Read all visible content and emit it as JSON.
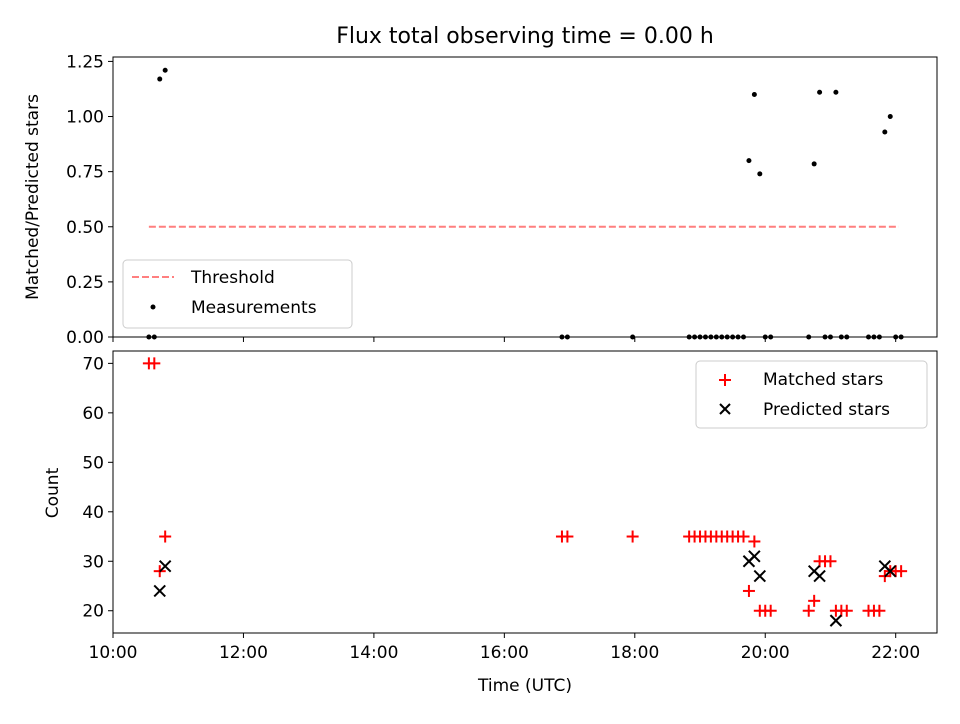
{
  "chart_data": [
    {
      "type": "scatter",
      "title": "Flux total observing time = 0.00 h",
      "xlabel": "",
      "ylabel": "Matched/Predicted stars",
      "ylim": [
        0,
        1.27
      ],
      "xlim": [
        "10:00",
        "22:38"
      ],
      "y_ticks": [
        "0.00",
        "0.25",
        "0.50",
        "0.75",
        "1.00",
        "1.25"
      ],
      "x_tick_labels_shown": false,
      "grid": false,
      "legend": {
        "placement": "lower-left",
        "entries": [
          "Threshold",
          "Measurements"
        ]
      },
      "threshold": {
        "name": "Threshold",
        "value": 0.5,
        "x_start": "10:33",
        "x_end": "22:03",
        "color": "#ff7f7f",
        "style": "dashed"
      },
      "series": [
        {
          "name": "Measurements",
          "marker": "dot",
          "color": "#000000",
          "points": [
            [
              "10:33",
              0.0
            ],
            [
              "10:38",
              0.0
            ],
            [
              "10:43",
              1.17
            ],
            [
              "10:48",
              1.21
            ],
            [
              "16:53",
              0.0
            ],
            [
              "16:58",
              0.0
            ],
            [
              "17:58",
              0.0
            ],
            [
              "18:50",
              0.0
            ],
            [
              "18:55",
              0.0
            ],
            [
              "19:00",
              0.0
            ],
            [
              "19:05",
              0.0
            ],
            [
              "19:10",
              0.0
            ],
            [
              "19:15",
              0.0
            ],
            [
              "19:20",
              0.0
            ],
            [
              "19:25",
              0.0
            ],
            [
              "19:30",
              0.0
            ],
            [
              "19:35",
              0.0
            ],
            [
              "19:40",
              0.0
            ],
            [
              "19:45",
              0.8
            ],
            [
              "19:50",
              1.1
            ],
            [
              "19:55",
              0.74
            ],
            [
              "20:00",
              0.0
            ],
            [
              "20:05",
              0.0
            ],
            [
              "20:40",
              0.0
            ],
            [
              "20:45",
              0.785
            ],
            [
              "20:50",
              1.11
            ],
            [
              "20:55",
              0.0
            ],
            [
              "21:00",
              0.0
            ],
            [
              "21:05",
              1.11
            ],
            [
              "21:10",
              0.0
            ],
            [
              "21:15",
              0.0
            ],
            [
              "21:35",
              0.0
            ],
            [
              "21:40",
              0.0
            ],
            [
              "21:45",
              0.0
            ],
            [
              "21:50",
              0.93
            ],
            [
              "21:55",
              1.0
            ],
            [
              "22:00",
              0.0
            ],
            [
              "22:05",
              0.0
            ]
          ]
        }
      ]
    },
    {
      "type": "scatter",
      "title": "",
      "xlabel": "Time (UTC)",
      "ylabel": "Count",
      "ylim": [
        15.5,
        72.5
      ],
      "xlim": [
        "10:00",
        "22:38"
      ],
      "y_ticks": [
        "20",
        "30",
        "40",
        "50",
        "60",
        "70"
      ],
      "x_ticks": [
        "10:00",
        "12:00",
        "14:00",
        "16:00",
        "18:00",
        "20:00",
        "22:00"
      ],
      "grid": false,
      "legend": {
        "placement": "upper-right",
        "entries": [
          "Matched stars",
          "Predicted stars"
        ]
      },
      "series": [
        {
          "name": "Matched stars",
          "marker": "plus",
          "color": "#ff0000",
          "points": [
            [
              "10:33",
              70
            ],
            [
              "10:38",
              70
            ],
            [
              "10:43",
              28
            ],
            [
              "10:48",
              35
            ],
            [
              "16:53",
              35
            ],
            [
              "16:58",
              35
            ],
            [
              "17:58",
              35
            ],
            [
              "18:50",
              35
            ],
            [
              "18:55",
              35
            ],
            [
              "19:00",
              35
            ],
            [
              "19:05",
              35
            ],
            [
              "19:10",
              35
            ],
            [
              "19:15",
              35
            ],
            [
              "19:20",
              35
            ],
            [
              "19:25",
              35
            ],
            [
              "19:30",
              35
            ],
            [
              "19:35",
              35
            ],
            [
              "19:40",
              35
            ],
            [
              "19:45",
              24
            ],
            [
              "19:50",
              34
            ],
            [
              "19:55",
              20
            ],
            [
              "20:00",
              20
            ],
            [
              "20:05",
              20
            ],
            [
              "20:40",
              20
            ],
            [
              "20:45",
              22
            ],
            [
              "20:50",
              30
            ],
            [
              "20:55",
              30
            ],
            [
              "21:00",
              30
            ],
            [
              "21:05",
              20
            ],
            [
              "21:10",
              20
            ],
            [
              "21:15",
              20
            ],
            [
              "21:35",
              20
            ],
            [
              "21:40",
              20
            ],
            [
              "21:45",
              20
            ],
            [
              "21:50",
              27
            ],
            [
              "21:55",
              28
            ],
            [
              "22:00",
              28
            ],
            [
              "22:05",
              28
            ]
          ]
        },
        {
          "name": "Predicted stars",
          "marker": "x",
          "color": "#000000",
          "points": [
            [
              "10:43",
              24
            ],
            [
              "10:48",
              29
            ],
            [
              "19:45",
              30
            ],
            [
              "19:50",
              31
            ],
            [
              "19:55",
              27
            ],
            [
              "20:45",
              28
            ],
            [
              "20:50",
              27
            ],
            [
              "21:05",
              18
            ],
            [
              "21:50",
              29
            ],
            [
              "21:55",
              28
            ]
          ]
        }
      ]
    }
  ]
}
